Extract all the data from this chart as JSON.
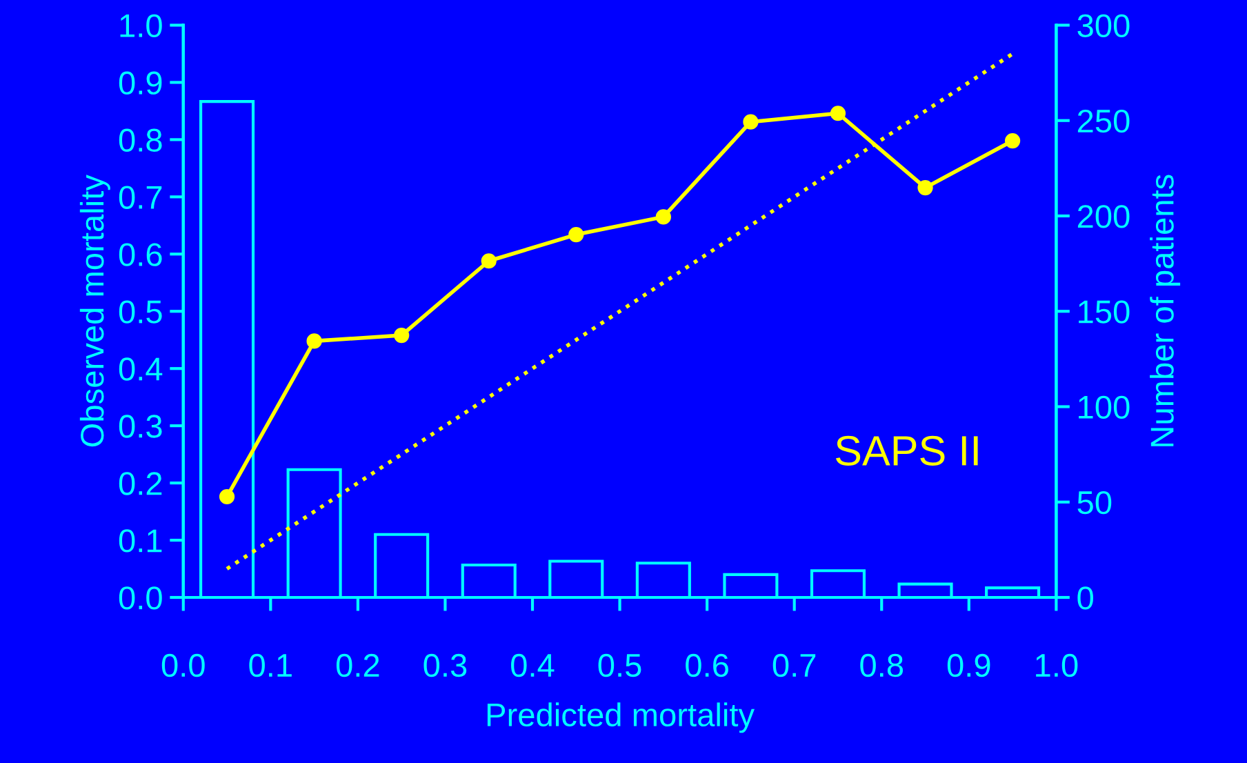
{
  "chart_data": {
    "type": "line",
    "xlabel": "Predicted mortality",
    "ylabel": "Observed mortality",
    "y2label": "Number of patients",
    "xlim": [
      0.0,
      1.0
    ],
    "xticks": [
      "0.0",
      0.1,
      0.2,
      0.3,
      0.4,
      0.5,
      0.6,
      0.7,
      0.8,
      0.9,
      "1.0"
    ],
    "ylim": [
      0.0,
      1.0
    ],
    "yticks": [
      "0.0",
      0.1,
      0.2,
      0.3,
      0.4,
      0.5,
      0.6,
      0.7,
      0.8,
      0.9,
      "1.0"
    ],
    "y2lim": [
      0,
      300
    ],
    "y2ticks": [
      0,
      50,
      100,
      150,
      200,
      250,
      300
    ],
    "grid": false,
    "legend": false,
    "annotations": [
      "SAPS II"
    ],
    "series": [
      {
        "type": "bar",
        "axis": "y2",
        "color": "#00ffff",
        "x": [
          0.05,
          0.15,
          0.25,
          0.35,
          0.45,
          0.55,
          0.65,
          0.75,
          0.85,
          0.95
        ],
        "values": [
          260,
          67,
          33,
          17,
          19,
          18,
          12,
          14,
          7,
          5
        ]
      },
      {
        "color": "#ffff00",
        "marker": "circle",
        "line_style": "solid",
        "x": [
          0.05,
          0.15,
          0.25,
          0.35,
          0.45,
          0.55,
          0.65,
          0.75,
          0.85,
          0.95
        ],
        "values": [
          0.176,
          0.448,
          0.458,
          0.588,
          0.634,
          0.665,
          0.831,
          0.846,
          0.716,
          0.798
        ]
      },
      {
        "color": "#ffff00",
        "marker": "none",
        "line_style": "dotted",
        "x": [
          0.05,
          0.95
        ],
        "values": [
          0.05,
          0.95
        ]
      }
    ]
  }
}
